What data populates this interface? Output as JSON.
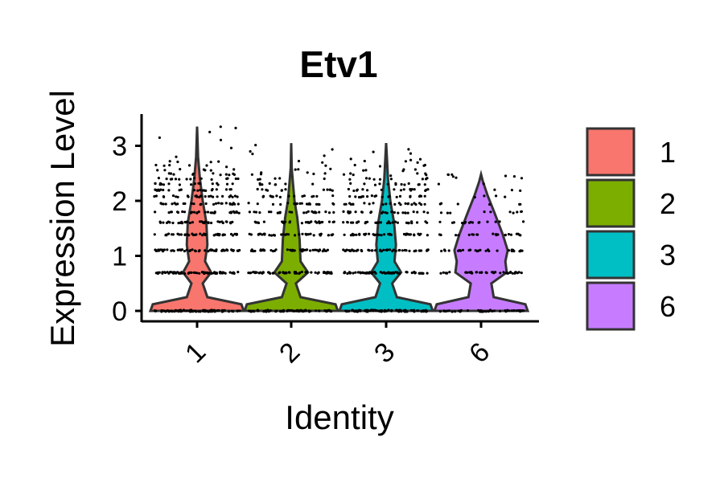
{
  "chart_data": {
    "type": "violin",
    "title": "Etv1",
    "xlabel": "Identity",
    "ylabel": "Expression Level",
    "ylim": [
      -0.1,
      3.55
    ],
    "yticks": [
      0,
      1,
      2,
      3
    ],
    "categories": [
      "1",
      "2",
      "3",
      "6"
    ],
    "colors": [
      "#F8766D",
      "#7CAE00",
      "#00BFC4",
      "#C77CFF"
    ],
    "legend": {
      "position": "right",
      "labels": [
        "1",
        "2",
        "3",
        "6"
      ]
    },
    "max_values": [
      3.35,
      3.05,
      3.05,
      2.48
    ],
    "grid": false
  }
}
